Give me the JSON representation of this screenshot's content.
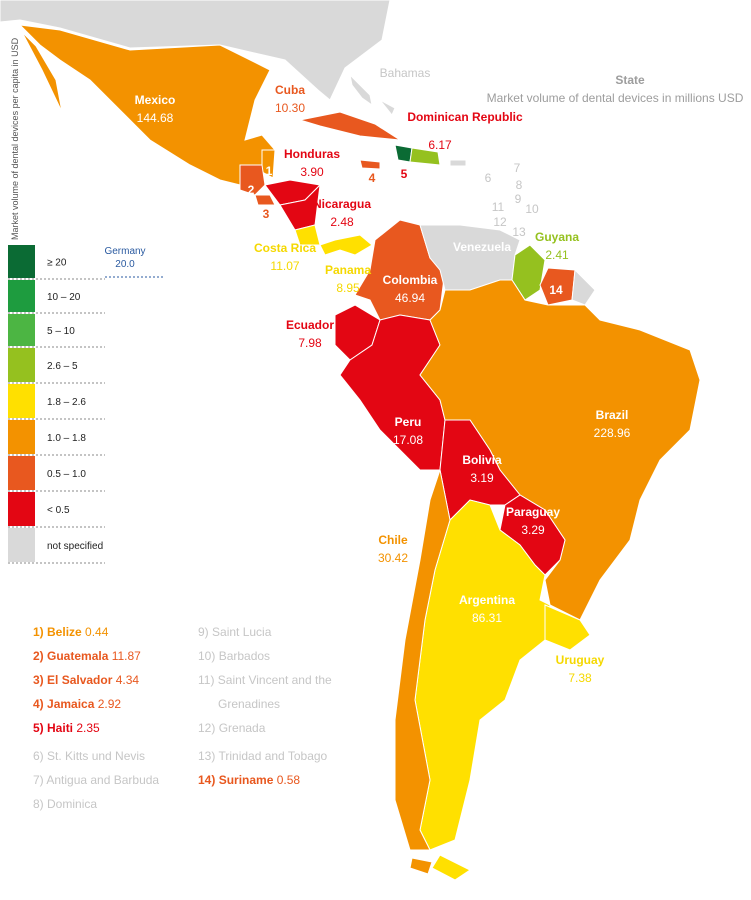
{
  "header": {
    "title": "State",
    "subtitle": "Market volume  of dental devices in millions USD"
  },
  "scale": {
    "title": "Market volume of dental devices per capita in USD",
    "classes": [
      {
        "label": "≥ 20",
        "color": "#0b6b34"
      },
      {
        "label": "10 – 20",
        "color": "#1e9c3f"
      },
      {
        "label": "5 – 10",
        "color": "#4cb543"
      },
      {
        "label": "2.6 – 5",
        "color": "#95c11f"
      },
      {
        "label": "1.8 – 2.6",
        "color": "#ffe000"
      },
      {
        "label": "1.0 – 1.8",
        "color": "#f39200"
      },
      {
        "label": "0.5 – 1.0",
        "color": "#e8581f"
      },
      {
        "label": "< 0.5",
        "color": "#e30613"
      },
      {
        "label": "not specified",
        "color": "#d9d9d9"
      }
    ],
    "reference": {
      "name": "Germany",
      "value": "20.0"
    }
  },
  "countries": [
    {
      "name": "Mexico",
      "value": "144.68"
    },
    {
      "name": "Cuba",
      "value": "10.30"
    },
    {
      "name": "Bahamas"
    },
    {
      "name": "Dominican Republic",
      "value": "6.17"
    },
    {
      "name": "Honduras",
      "value": "3.90"
    },
    {
      "name": "Nicaragua",
      "value": "2.48"
    },
    {
      "name": "Costa Rica",
      "value": "11.07"
    },
    {
      "name": "Panama",
      "value": "8.95"
    },
    {
      "name": "Colombia",
      "value": "46.94"
    },
    {
      "name": "Venezuela"
    },
    {
      "name": "Guyana",
      "value": "2.41"
    },
    {
      "name": "Ecuador",
      "value": "7.98"
    },
    {
      "name": "Peru",
      "value": "17.08"
    },
    {
      "name": "Brazil",
      "value": "228.96"
    },
    {
      "name": "Bolivia",
      "value": "3.19"
    },
    {
      "name": "Paraguay",
      "value": "3.29"
    },
    {
      "name": "Chile",
      "value": "30.42"
    },
    {
      "name": "Argentina",
      "value": "86.31"
    },
    {
      "name": "Uruguay",
      "value": "7.38"
    }
  ],
  "small_states": [
    {
      "number": "1)",
      "name": "Belize",
      "value": "0.44"
    },
    {
      "number": "2)",
      "name": "Guatemala",
      "value": "11.87"
    },
    {
      "number": "3)",
      "name": "El Salvador",
      "value": "4.34"
    },
    {
      "number": "4)",
      "name": "Jamaica",
      "value": "2.92"
    },
    {
      "number": "5)",
      "name": "Haiti",
      "value": "2.35"
    },
    {
      "number": "6)",
      "name": "St. Kitts und Nevis"
    },
    {
      "number": "7)",
      "name": "Antigua and Barbuda"
    },
    {
      "number": "8)",
      "name": "Dominica"
    },
    {
      "number": "9)",
      "name": "Saint Lucia"
    },
    {
      "number": "10)",
      "name": "Barbados"
    },
    {
      "number": "11)",
      "name": "Saint Vincent and the",
      "name2": "Grenadines"
    },
    {
      "number": "12)",
      "name": "Grenada"
    },
    {
      "number": "13)",
      "name": "Trinidad and Tobago"
    },
    {
      "number": "14)",
      "name": "Suriname",
      "value": "0.58"
    }
  ],
  "markers": [
    "1",
    "2",
    "3",
    "4",
    "5",
    "6",
    "7",
    "8",
    "9",
    "10",
    "11",
    "12",
    "13",
    "14"
  ]
}
